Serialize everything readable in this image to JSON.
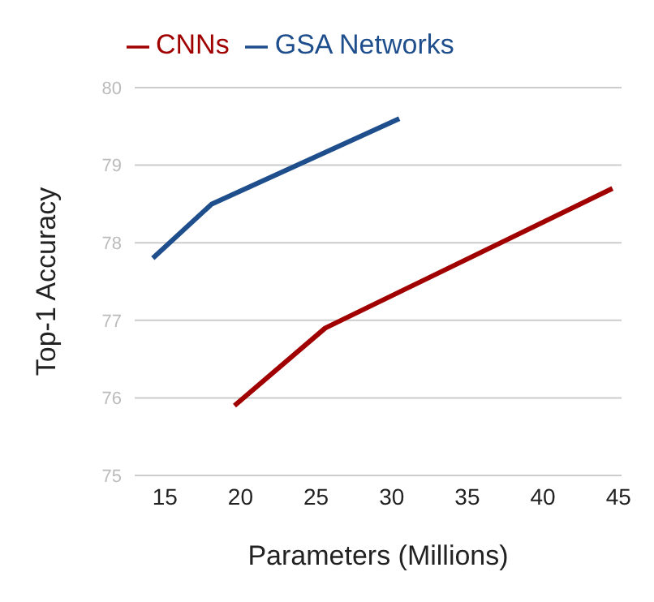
{
  "chart_data": {
    "type": "line",
    "xlabel": "Parameters (Millions)",
    "ylabel": "Top-1 Accuracy",
    "series": [
      {
        "name": "CNNs",
        "color": "#a00000",
        "x": [
          19.6,
          25.6,
          44.6
        ],
        "values": [
          75.9,
          76.9,
          78.7
        ]
      },
      {
        "name": "GSA Networks",
        "color": "#1f4e8c",
        "x": [
          14.2,
          18.1,
          30.5
        ],
        "values": [
          77.8,
          78.5,
          79.6
        ]
      }
    ],
    "xlim": [
      13,
      45.2
    ],
    "xticks": [
      15,
      20,
      25,
      30,
      35,
      40,
      45
    ],
    "ylim": [
      75,
      80
    ],
    "yticks": [
      75,
      76,
      77,
      78,
      79,
      80
    ],
    "grid": "y",
    "legend": "top left",
    "marker": "none",
    "line_style": "solid"
  }
}
